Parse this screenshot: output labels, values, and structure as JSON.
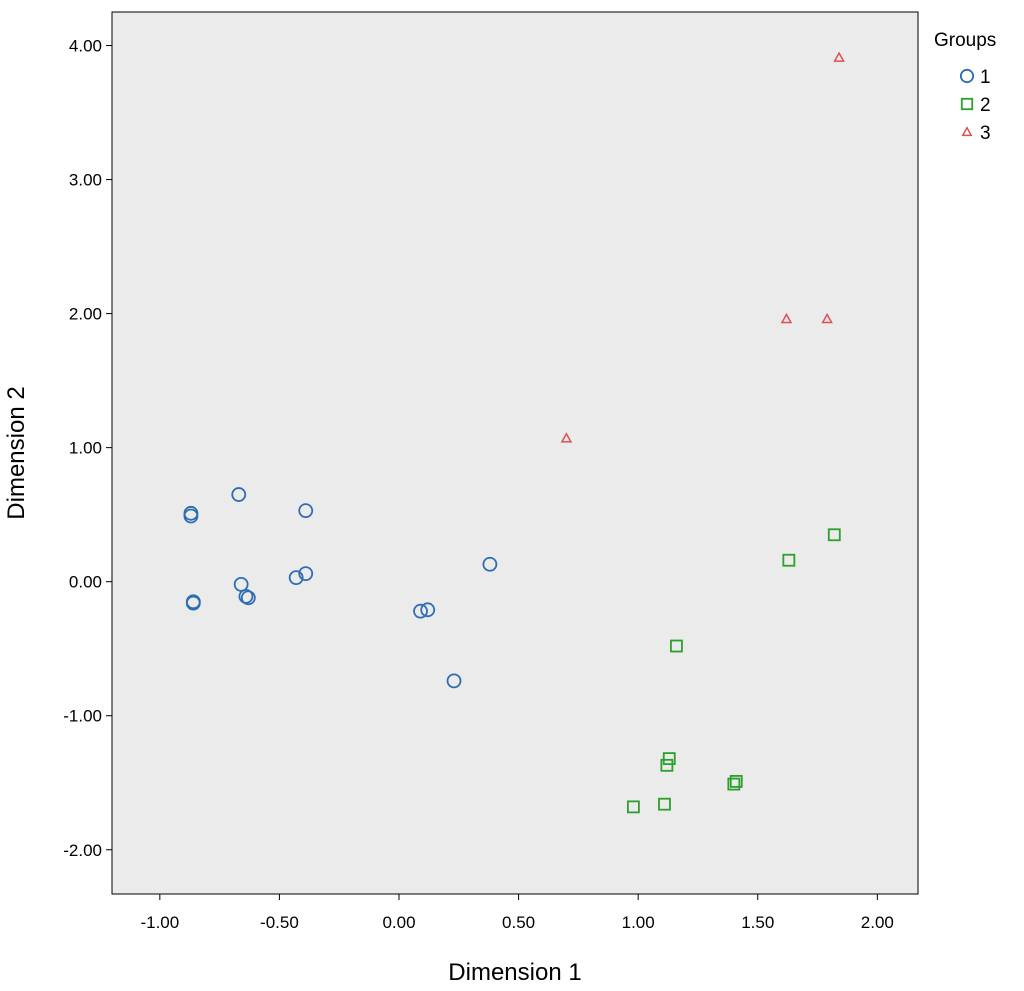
{
  "chart_data": {
    "type": "scatter",
    "title": "",
    "xlabel": "Dimension 1",
    "ylabel": "Dimension 2",
    "xlim": [
      -1.2,
      2.17
    ],
    "ylim": [
      -2.33,
      4.25
    ],
    "xticks": [
      "-1.00",
      "-0.50",
      "0.00",
      "0.50",
      "1.00",
      "1.50",
      "2.00"
    ],
    "xtick_values": [
      -1.0,
      -0.5,
      0.0,
      0.5,
      1.0,
      1.5,
      2.0
    ],
    "yticks": [
      "4.00",
      "3.00",
      "2.00",
      "1.00",
      "0.00",
      "-1.00",
      "-2.00"
    ],
    "ytick_values": [
      4.0,
      3.0,
      2.0,
      1.0,
      0.0,
      -1.0,
      -2.0
    ],
    "grid": false,
    "plot_background": "#ebebeb",
    "legend": {
      "title": "Groups",
      "position": "right"
    },
    "series": [
      {
        "name": "1",
        "marker": "circle",
        "color": "#2e6db5",
        "points": [
          [
            -0.87,
            0.51
          ],
          [
            -0.87,
            0.49
          ],
          [
            -0.86,
            -0.15
          ],
          [
            -0.86,
            -0.16
          ],
          [
            -0.67,
            0.65
          ],
          [
            -0.66,
            -0.02
          ],
          [
            -0.64,
            -0.11
          ],
          [
            -0.63,
            -0.12
          ],
          [
            -0.43,
            0.03
          ],
          [
            -0.39,
            0.06
          ],
          [
            -0.39,
            0.53
          ],
          [
            0.09,
            -0.22
          ],
          [
            0.12,
            -0.21
          ],
          [
            0.23,
            -0.74
          ],
          [
            0.38,
            0.13
          ]
        ]
      },
      {
        "name": "2",
        "marker": "square",
        "color": "#2ca02c",
        "points": [
          [
            0.98,
            -1.68
          ],
          [
            1.11,
            -1.66
          ],
          [
            1.12,
            -1.37
          ],
          [
            1.13,
            -1.32
          ],
          [
            1.16,
            -0.48
          ],
          [
            1.4,
            -1.51
          ],
          [
            1.41,
            -1.49
          ],
          [
            1.63,
            0.16
          ],
          [
            1.82,
            0.35
          ]
        ]
      },
      {
        "name": "3",
        "marker": "triangle",
        "color": "#e05050",
        "points": [
          [
            0.7,
            1.07
          ],
          [
            1.62,
            1.96
          ],
          [
            1.79,
            1.96
          ],
          [
            1.84,
            3.91
          ]
        ]
      }
    ]
  }
}
